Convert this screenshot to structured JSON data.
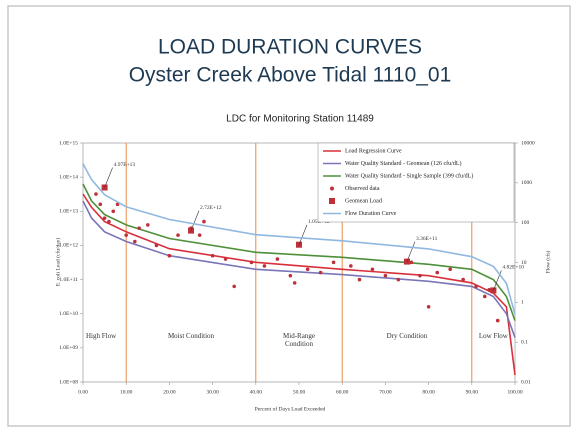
{
  "slide": {
    "title": "LOAD DURATION CURVES",
    "subtitle": "Oyster Creek Above Tidal 1110_01"
  },
  "chart_data": {
    "type": "line",
    "title": "LDC for Monitoring Station 11489",
    "x_label": "Percent of Days Load Exceeded",
    "y_label": "E. coli Load (cfu/day)",
    "y2_label": "Flow (cfs)",
    "xlim": [
      0,
      100
    ],
    "xticks": [
      {
        "value": 0,
        "label": "0.00"
      },
      {
        "value": 10,
        "label": "10.00"
      },
      {
        "value": 20,
        "label": "20.00"
      },
      {
        "value": 30,
        "label": "30.00"
      },
      {
        "value": 40,
        "label": "40.00"
      },
      {
        "value": 50,
        "label": "50.00"
      },
      {
        "value": 60,
        "label": "60.00"
      },
      {
        "value": 70,
        "label": "70.00"
      },
      {
        "value": 80,
        "label": "80.00"
      },
      {
        "value": 90,
        "label": "90.00"
      },
      {
        "value": 100,
        "label": "100.00"
      }
    ],
    "ylim": [
      100000000,
      1000000000000000
    ],
    "ylog": true,
    "yticks": [
      {
        "value": 100000000,
        "label": "1.0E+08"
      },
      {
        "value": 1000000000,
        "label": "1.0E+09"
      },
      {
        "value": 10000000000,
        "label": "1.0E+10"
      },
      {
        "value": 100000000000,
        "label": "1.0E+11"
      },
      {
        "value": 1000000000000,
        "label": "1.0E+12"
      },
      {
        "value": 10000000000000,
        "label": "1.0E+13"
      },
      {
        "value": 100000000000000,
        "label": "1.0E+14"
      },
      {
        "value": 1000000000000000,
        "label": "1.0E+15"
      }
    ],
    "y2lim": [
      0.01,
      10000
    ],
    "y2log": true,
    "y2ticks": [
      0.01,
      0.1,
      1,
      10,
      100,
      1000,
      10000
    ],
    "legend": "top-right",
    "regions": {
      "color": "#e8894a",
      "boundaries": [
        10,
        40,
        60,
        90
      ],
      "labels": [
        "High Flow",
        "Moist Condition",
        "Mid-Range Condition",
        "Dry Condition",
        "Low Flow"
      ]
    },
    "series": [
      {
        "name": "Load Regression Curve",
        "color": "#d7303a",
        "kind": "line",
        "x": [
          0,
          2,
          5,
          10,
          20,
          40,
          60,
          80,
          90,
          95,
          98,
          100
        ],
        "values": [
          32000000000000.0,
          13000000000000.0,
          5000000000000.0,
          2500000000000.0,
          800000000000.0,
          320000000000.0,
          200000000000.0,
          130000000000.0,
          80000000000.0,
          40000000000.0,
          16000000000.0,
          160000000.0
        ]
      },
      {
        "name": "Water Quality Standard - Geomean (126 cfu/dL)",
        "color": "#7a76b8",
        "kind": "line",
        "x": [
          0,
          2,
          5,
          10,
          20,
          40,
          60,
          80,
          90,
          95,
          98,
          100
        ],
        "values": [
          20000000000000.0,
          6300000000000.0,
          2500000000000.0,
          1300000000000.0,
          500000000000.0,
          200000000000.0,
          140000000000.0,
          89000000000.0,
          63000000000.0,
          32000000000.0,
          10000000000.0,
          2000000000.0
        ]
      },
      {
        "name": "Water Quality Standard - Single Sample (399 cfu/dL)",
        "color": "#4e8f3a",
        "kind": "line",
        "x": [
          0,
          2,
          5,
          10,
          20,
          40,
          60,
          80,
          90,
          95,
          98,
          100
        ],
        "values": [
          63000000000000.0,
          20000000000000.0,
          8000000000000.0,
          4000000000000.0,
          1600000000000.0,
          630000000000.0,
          450000000000.0,
          280000000000.0,
          200000000000.0,
          100000000000.0,
          32000000000.0,
          6300000000.0
        ]
      },
      {
        "name": "Observed data",
        "color": "#c0303a",
        "kind": "scatter",
        "x": [
          3,
          4,
          5,
          6,
          7,
          8,
          10,
          12,
          13,
          15,
          17,
          20,
          22,
          25,
          27,
          28,
          30,
          33,
          35,
          39,
          42,
          45,
          48,
          49,
          52,
          55,
          58,
          62,
          64,
          67,
          70,
          73,
          76,
          78,
          80,
          82,
          85,
          88,
          91,
          93,
          94,
          96
        ],
        "values": [
          32000000000000.0,
          16000000000000.0,
          6300000000000.0,
          5000000000000.0,
          10000000000000.0,
          16000000000000.0,
          2000000000000.0,
          1300000000000.0,
          3200000000000.0,
          4000000000000.0,
          1000000000000.0,
          500000000000.0,
          2000000000000.0,
          3200000000000.0,
          2000000000000.0,
          5000000000000.0,
          500000000000.0,
          400000000000.0,
          63000000000.0,
          320000000000.0,
          250000000000.0,
          400000000000.0,
          130000000000.0,
          80000000000.0,
          200000000000.0,
          160000000000.0,
          320000000000.0,
          250000000000.0,
          100000000000.0,
          200000000000.0,
          130000000000.0,
          100000000000.0,
          320000000000.0,
          130000000000.0,
          16000000000.0,
          160000000000.0,
          200000000000.0,
          100000000000.0,
          63000000000.0,
          32000000000.0,
          50000000000.0,
          6300000000.0
        ]
      },
      {
        "name": "Geomean Load",
        "color": "#c0303a",
        "kind": "square",
        "x": [
          5,
          25,
          50,
          75,
          95
        ],
        "values": [
          49700000000000.0,
          2720000000000.0,
          1050000000000.0,
          336000000000.0,
          48200000000.0
        ],
        "value_labels": [
          "4.97E+13",
          "2.72E+12",
          "1.05E+12",
          "3.36E+11",
          "4.82E+10"
        ]
      },
      {
        "name": "Flow Duration Curve",
        "color": "#8fb8e0",
        "kind": "line",
        "axis": "y2",
        "x": [
          0,
          2,
          5,
          10,
          20,
          40,
          60,
          80,
          90,
          95,
          98,
          100
        ],
        "values": [
          3000,
          1200,
          500,
          250,
          120,
          50,
          35,
          22,
          14,
          8,
          3,
          0.5
        ]
      }
    ]
  }
}
